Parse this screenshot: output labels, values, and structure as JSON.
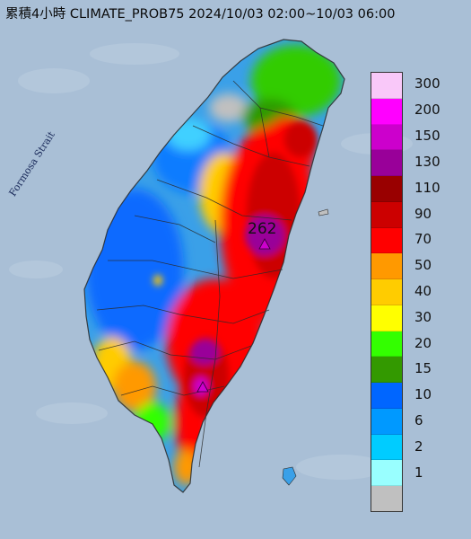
{
  "title": "累積4小時 CLIMATE_PROB75 2024/10/03 02:00~10/03 06:00",
  "strait_label": "Formosa Strait",
  "peak": {
    "value": "262",
    "marker_icon": "triangle-marker-icon"
  },
  "colors": {
    "sea": "#a9bfd6",
    "boundary": "#2a2a2a"
  },
  "legend": {
    "unit": "",
    "items": [
      {
        "label": "300",
        "color": "#f9c8f9"
      },
      {
        "label": "200",
        "color": "#ff00ff"
      },
      {
        "label": "150",
        "color": "#cc00cc"
      },
      {
        "label": "130",
        "color": "#990099"
      },
      {
        "label": "110",
        "color": "#990000"
      },
      {
        "label": "90",
        "color": "#cc0000"
      },
      {
        "label": "70",
        "color": "#ff0000"
      },
      {
        "label": "50",
        "color": "#ff9900"
      },
      {
        "label": "40",
        "color": "#ffcc00"
      },
      {
        "label": "30",
        "color": "#ffff00"
      },
      {
        "label": "20",
        "color": "#33ff00"
      },
      {
        "label": "15",
        "color": "#339900"
      },
      {
        "label": "10",
        "color": "#0066ff"
      },
      {
        "label": "6",
        "color": "#0099ff"
      },
      {
        "label": "2",
        "color": "#00ccff"
      },
      {
        "label": "1",
        "color": "#99ffff"
      },
      {
        "label": "",
        "color": "#c0c0c0"
      }
    ]
  }
}
